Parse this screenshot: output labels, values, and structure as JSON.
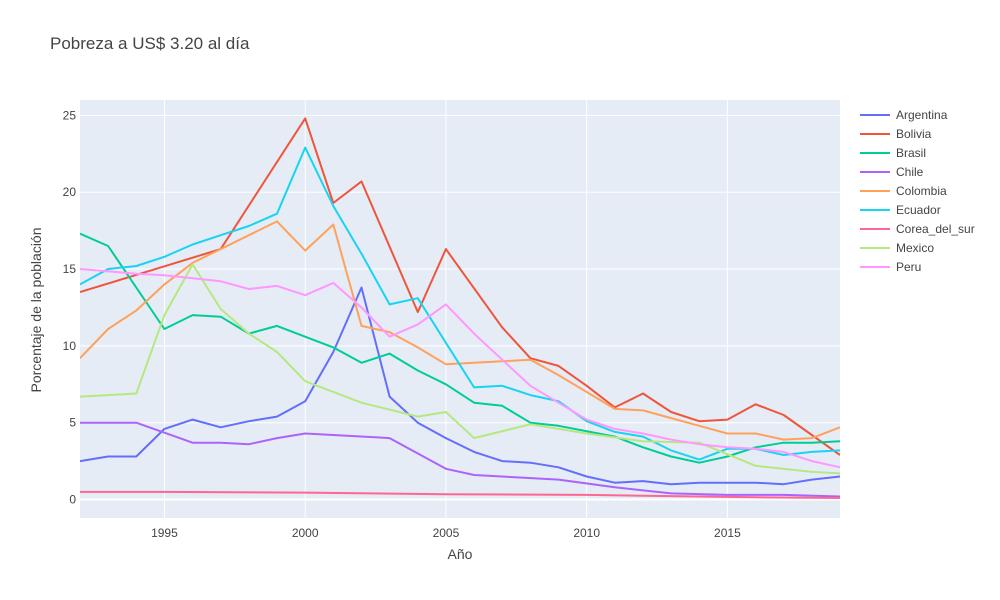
{
  "chart_data": {
    "type": "line",
    "title": "Pobreza a US$ 3.20 al día",
    "xlabel": "Año",
    "ylabel": "Porcentaje de la población",
    "xlim": [
      1992,
      2019
    ],
    "ylim": [
      -1.2,
      26
    ],
    "x_ticks": [
      1995,
      2000,
      2005,
      2010,
      2015
    ],
    "y_ticks": [
      0,
      5,
      10,
      15,
      20,
      25
    ],
    "grid": true,
    "legend_position": "right",
    "series": [
      {
        "name": "Argentina",
        "color": "#636efa",
        "x": [
          1992,
          1993,
          1994,
          1995,
          1996,
          1997,
          1998,
          1999,
          2000,
          2001,
          2002,
          2003,
          2004,
          2005,
          2006,
          2007,
          2008,
          2009,
          2010,
          2011,
          2012,
          2013,
          2014,
          2015,
          2016,
          2017,
          2018,
          2019
        ],
        "y": [
          2.5,
          2.8,
          2.8,
          4.6,
          5.2,
          4.7,
          5.1,
          5.4,
          6.4,
          9.6,
          13.8,
          6.7,
          5.0,
          4.0,
          3.1,
          2.5,
          2.4,
          2.1,
          1.5,
          1.1,
          1.2,
          1.0,
          1.1,
          1.1,
          1.1,
          1.0,
          1.3,
          1.5
        ]
      },
      {
        "name": "Bolivia",
        "color": "#ef553b",
        "x": [
          1992,
          1997,
          2000,
          2001,
          2002,
          2004,
          2005,
          2007,
          2008,
          2009,
          2010,
          2011,
          2012,
          2013,
          2014,
          2015,
          2016,
          2017,
          2019
        ],
        "y": [
          13.5,
          16.3,
          24.8,
          19.3,
          20.7,
          12.2,
          16.3,
          11.2,
          9.2,
          8.7,
          7.4,
          6.0,
          6.9,
          5.7,
          5.1,
          5.2,
          6.2,
          5.5,
          2.9
        ]
      },
      {
        "name": "Brasil",
        "color": "#00cc96",
        "x": [
          1992,
          1993,
          1995,
          1996,
          1997,
          1998,
          1999,
          2001,
          2002,
          2003,
          2004,
          2005,
          2006,
          2007,
          2008,
          2009,
          2011,
          2012,
          2013,
          2014,
          2015,
          2016,
          2017,
          2018,
          2019
        ],
        "y": [
          17.3,
          16.5,
          11.1,
          12.0,
          11.9,
          10.8,
          11.3,
          9.9,
          8.9,
          9.5,
          8.4,
          7.5,
          6.3,
          6.1,
          5.0,
          4.8,
          4.1,
          3.4,
          2.8,
          2.4,
          2.8,
          3.4,
          3.7,
          3.7,
          3.8
        ]
      },
      {
        "name": "Chile",
        "color": "#ab63fa",
        "x": [
          1992,
          1994,
          1996,
          1997,
          1998,
          1999,
          2000,
          2003,
          2005,
          2006,
          2009,
          2011,
          2013,
          2015,
          2017,
          2019
        ],
        "y": [
          5.0,
          5.0,
          3.7,
          3.7,
          3.6,
          4.0,
          4.3,
          4.0,
          2.0,
          1.6,
          1.3,
          0.8,
          0.4,
          0.3,
          0.3,
          0.2
        ]
      },
      {
        "name": "Colombia",
        "color": "#ffa15a",
        "x": [
          1992,
          1993,
          1994,
          1995,
          1996,
          1997,
          1998,
          1999,
          2000,
          2001,
          2002,
          2003,
          2004,
          2005,
          2006,
          2007,
          2008,
          2009,
          2010,
          2011,
          2012,
          2013,
          2014,
          2015,
          2016,
          2017,
          2018,
          2019
        ],
        "y": [
          9.2,
          11.1,
          12.3,
          14.0,
          15.4,
          16.3,
          17.2,
          18.1,
          16.2,
          17.9,
          11.3,
          10.9,
          9.9,
          8.8,
          8.9,
          9.0,
          9.1,
          8.1,
          7.0,
          5.9,
          5.8,
          5.3,
          4.8,
          4.3,
          4.3,
          3.9,
          4.0,
          4.7
        ]
      },
      {
        "name": "Ecuador",
        "color": "#19d3f3",
        "x": [
          1992,
          1993,
          1994,
          1995,
          1996,
          1997,
          1998,
          1999,
          2000,
          2001,
          2002,
          2003,
          2004,
          2005,
          2006,
          2007,
          2008,
          2009,
          2010,
          2011,
          2012,
          2013,
          2014,
          2015,
          2016,
          2017,
          2018,
          2019
        ],
        "y": [
          14.0,
          15.0,
          15.2,
          15.8,
          16.6,
          17.2,
          17.8,
          18.6,
          22.9,
          19.1,
          16.0,
          12.7,
          13.1,
          10.2,
          7.3,
          7.4,
          6.8,
          6.4,
          5.1,
          4.4,
          4.1,
          3.2,
          2.6,
          3.3,
          3.3,
          2.9,
          3.1,
          3.2
        ]
      },
      {
        "name": "Corea_del_sur",
        "color": "#ff6692",
        "x": [
          1992,
          1995,
          2000,
          2005,
          2010,
          2014,
          2016,
          2019
        ],
        "y": [
          0.5,
          0.5,
          0.45,
          0.35,
          0.3,
          0.2,
          0.15,
          0.1
        ]
      },
      {
        "name": "Mexico",
        "color": "#b6e880",
        "x": [
          1992,
          1994,
          1995,
          1996,
          1997,
          1998,
          1999,
          2000,
          2002,
          2004,
          2005,
          2006,
          2008,
          2010,
          2012,
          2014,
          2016,
          2018,
          2019
        ],
        "y": [
          6.7,
          6.9,
          12.0,
          15.3,
          12.4,
          10.8,
          9.6,
          7.7,
          6.3,
          5.4,
          5.7,
          4.0,
          4.9,
          4.3,
          3.8,
          3.7,
          2.2,
          1.8,
          1.7
        ]
      },
      {
        "name": "Peru",
        "color": "#ff97ff",
        "x": [
          1992,
          1994,
          1995,
          1996,
          1997,
          1998,
          1999,
          2000,
          2001,
          2002,
          2003,
          2004,
          2005,
          2006,
          2007,
          2008,
          2009,
          2010,
          2011,
          2012,
          2013,
          2014,
          2015,
          2016,
          2017,
          2018,
          2019
        ],
        "y": [
          15.0,
          14.7,
          14.6,
          14.4,
          14.2,
          13.7,
          13.9,
          13.3,
          14.1,
          12.5,
          10.6,
          11.4,
          12.7,
          10.8,
          9.1,
          7.4,
          6.3,
          5.2,
          4.6,
          4.3,
          3.9,
          3.6,
          3.4,
          3.3,
          3.1,
          2.5,
          2.1
        ]
      }
    ]
  }
}
